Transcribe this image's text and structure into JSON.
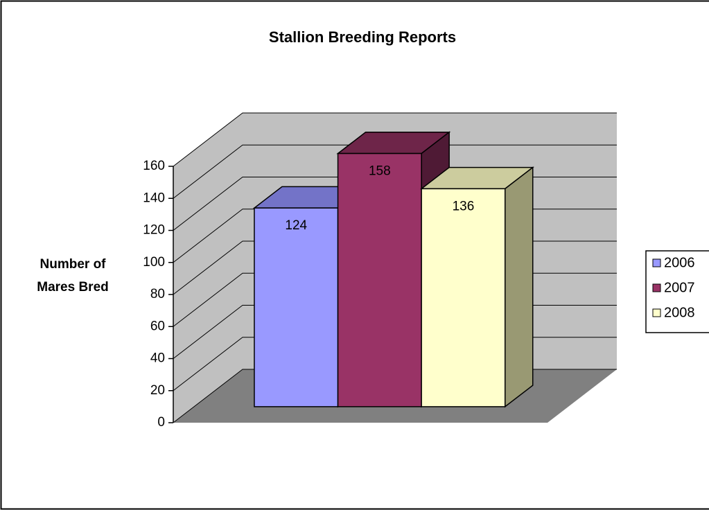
{
  "chart_data": {
    "type": "bar3d",
    "title": "Stallion Breeding Reports",
    "y_label": [
      "Number of",
      "Mares Bred"
    ],
    "categories": [
      null
    ],
    "series": [
      {
        "name": "2006",
        "color": "#9999ff",
        "top_color": "#7373c8",
        "side_color": "#5c5ca0",
        "values": [
          124
        ]
      },
      {
        "name": "2007",
        "color": "#993366",
        "top_color": "#6e2549",
        "side_color": "#4f1a35",
        "values": [
          158
        ]
      },
      {
        "name": "2008",
        "color": "#ffffcc",
        "top_color": "#cccc9e",
        "side_color": "#999973",
        "values": [
          136
        ]
      }
    ],
    "ylim": [
      0,
      160
    ],
    "yticks": [
      0,
      20,
      40,
      60,
      80,
      100,
      120,
      140,
      160
    ],
    "grid": true,
    "legend": "right"
  }
}
